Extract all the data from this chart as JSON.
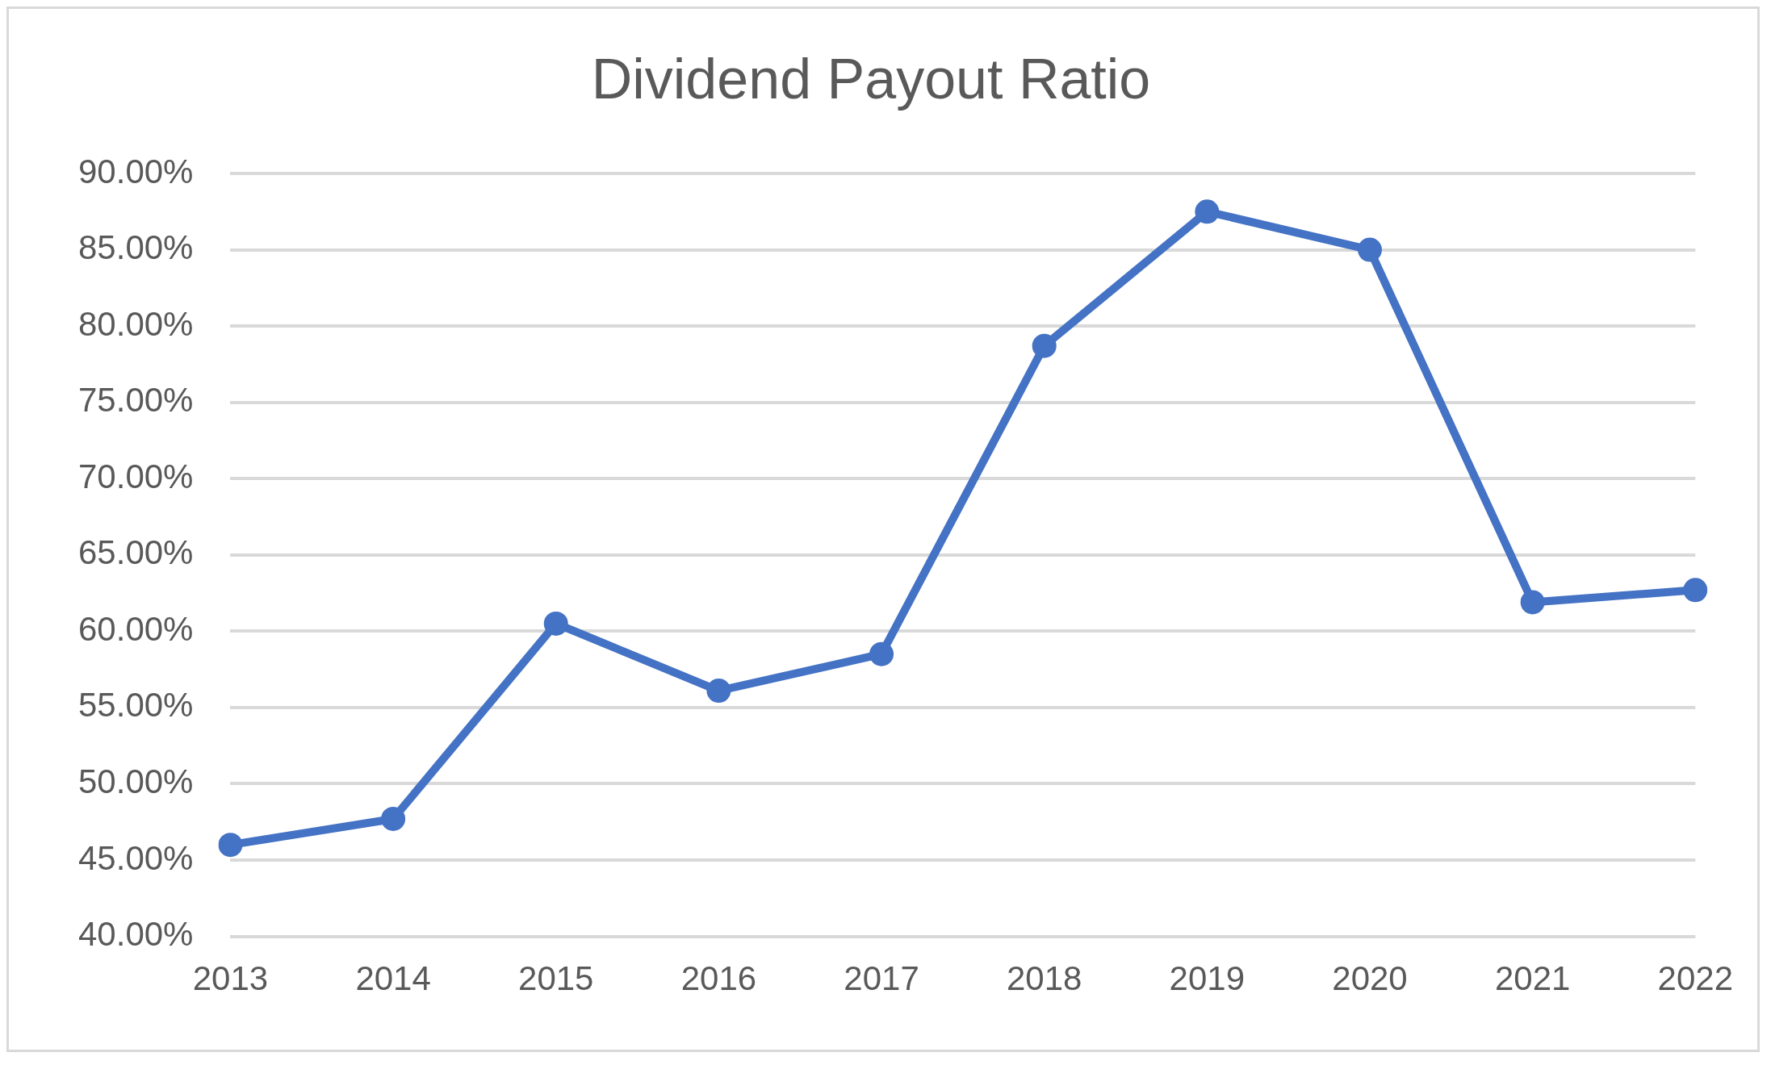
{
  "chart_data": {
    "type": "line",
    "title": "Dividend Payout Ratio",
    "categories": [
      "2013",
      "2014",
      "2015",
      "2016",
      "2017",
      "2018",
      "2019",
      "2020",
      "2021",
      "2022"
    ],
    "series": [
      {
        "color": "#4472c4",
        "values": [
          46.0,
          47.7,
          60.5,
          56.1,
          58.5,
          78.7,
          87.5,
          85.0,
          61.9,
          62.7
        ]
      }
    ],
    "ylim": [
      40,
      90
    ],
    "yticks": [
      {
        "value": 40,
        "label": "40.00%"
      },
      {
        "value": 45,
        "label": "45.00%"
      },
      {
        "value": 50,
        "label": "50.00%"
      },
      {
        "value": 55,
        "label": "55.00%"
      },
      {
        "value": 60,
        "label": "60.00%"
      },
      {
        "value": 65,
        "label": "65.00%"
      },
      {
        "value": 70,
        "label": "70.00%"
      },
      {
        "value": 75,
        "label": "75.00%"
      },
      {
        "value": 80,
        "label": "80.00%"
      },
      {
        "value": 85,
        "label": "85.00%"
      },
      {
        "value": 90,
        "label": "90.00%"
      }
    ],
    "grid": "y",
    "legend": false,
    "marker": "circle",
    "line_style": "solid"
  }
}
